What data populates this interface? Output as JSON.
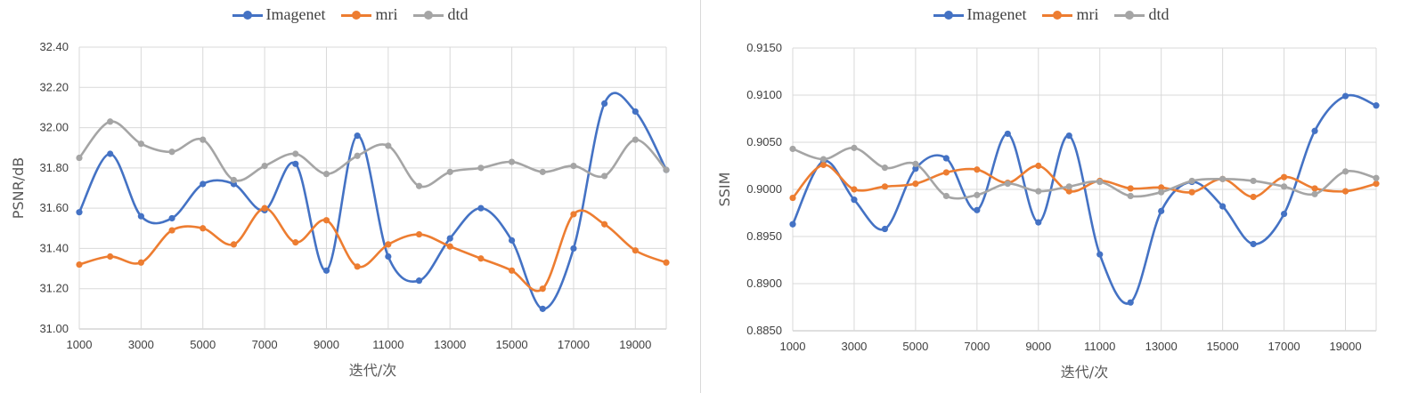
{
  "colors": {
    "Imagenet": "#4472c4",
    "mri": "#ed7d31",
    "dtd": "#a5a5a5",
    "grid": "#d9d9d9",
    "axis": "#bfbfbf"
  },
  "chart_data": [
    {
      "type": "line",
      "xlabel": "迭代/次",
      "ylabel": "PSNR/dB",
      "xlim": [
        1000,
        20000
      ],
      "ylim": [
        31.0,
        32.4
      ],
      "ystep": 0.2,
      "ydecimals": 2,
      "xticks": [
        1000,
        3000,
        5000,
        7000,
        9000,
        11000,
        13000,
        15000,
        17000,
        19000
      ],
      "x": [
        1000,
        2000,
        3000,
        4000,
        5000,
        6000,
        7000,
        8000,
        9000,
        10000,
        11000,
        12000,
        13000,
        14000,
        15000,
        16000,
        17000,
        18000,
        19000,
        20000
      ],
      "legend": "top",
      "grid": true,
      "series": [
        {
          "name": "Imagenet",
          "values": [
            31.58,
            31.87,
            31.56,
            31.55,
            31.72,
            31.72,
            31.59,
            31.82,
            31.29,
            31.96,
            31.36,
            31.24,
            31.45,
            31.6,
            31.44,
            31.1,
            31.4,
            32.12,
            32.08,
            31.79
          ]
        },
        {
          "name": "mri",
          "values": [
            31.32,
            31.36,
            31.33,
            31.49,
            31.5,
            31.42,
            31.6,
            31.43,
            31.54,
            31.31,
            31.42,
            31.47,
            31.41,
            31.35,
            31.29,
            31.2,
            31.57,
            31.52,
            31.39,
            31.33
          ]
        },
        {
          "name": "dtd",
          "values": [
            31.85,
            32.03,
            31.92,
            31.88,
            31.94,
            31.74,
            31.81,
            31.87,
            31.77,
            31.86,
            31.91,
            31.71,
            31.78,
            31.8,
            31.83,
            31.78,
            31.81,
            31.76,
            31.94,
            31.79
          ]
        }
      ]
    },
    {
      "type": "line",
      "xlabel": "迭代/次",
      "ylabel": "SSIM",
      "xlim": [
        1000,
        20000
      ],
      "ylim": [
        0.885,
        0.915
      ],
      "ystep": 0.005,
      "ydecimals": 4,
      "xticks": [
        1000,
        3000,
        5000,
        7000,
        9000,
        11000,
        13000,
        15000,
        17000,
        19000
      ],
      "x": [
        1000,
        2000,
        3000,
        4000,
        5000,
        6000,
        7000,
        8000,
        9000,
        10000,
        11000,
        12000,
        13000,
        14000,
        15000,
        16000,
        17000,
        18000,
        19000,
        20000
      ],
      "legend": "top",
      "grid": true,
      "series": [
        {
          "name": "Imagenet",
          "values": [
            0.8963,
            0.903,
            0.8989,
            0.8958,
            0.9022,
            0.9033,
            0.8978,
            0.9059,
            0.8965,
            0.9057,
            0.8931,
            0.888,
            0.8977,
            0.9008,
            0.8982,
            0.8942,
            0.8974,
            0.9062,
            0.9099,
            0.9089
          ]
        },
        {
          "name": "mri",
          "values": [
            0.8991,
            0.9026,
            0.9,
            0.9003,
            0.9006,
            0.9018,
            0.9021,
            0.9007,
            0.9025,
            0.8998,
            0.9009,
            0.9001,
            0.9002,
            0.8997,
            0.9011,
            0.8992,
            0.9013,
            0.9001,
            0.8998,
            0.9006
          ]
        },
        {
          "name": "dtd",
          "values": [
            0.9043,
            0.9032,
            0.9044,
            0.9023,
            0.9027,
            0.8993,
            0.8994,
            0.9006,
            0.8998,
            0.9003,
            0.9008,
            0.8993,
            0.8997,
            0.9009,
            0.9011,
            0.9009,
            0.9003,
            0.8995,
            0.9019,
            0.9012
          ]
        }
      ]
    }
  ]
}
